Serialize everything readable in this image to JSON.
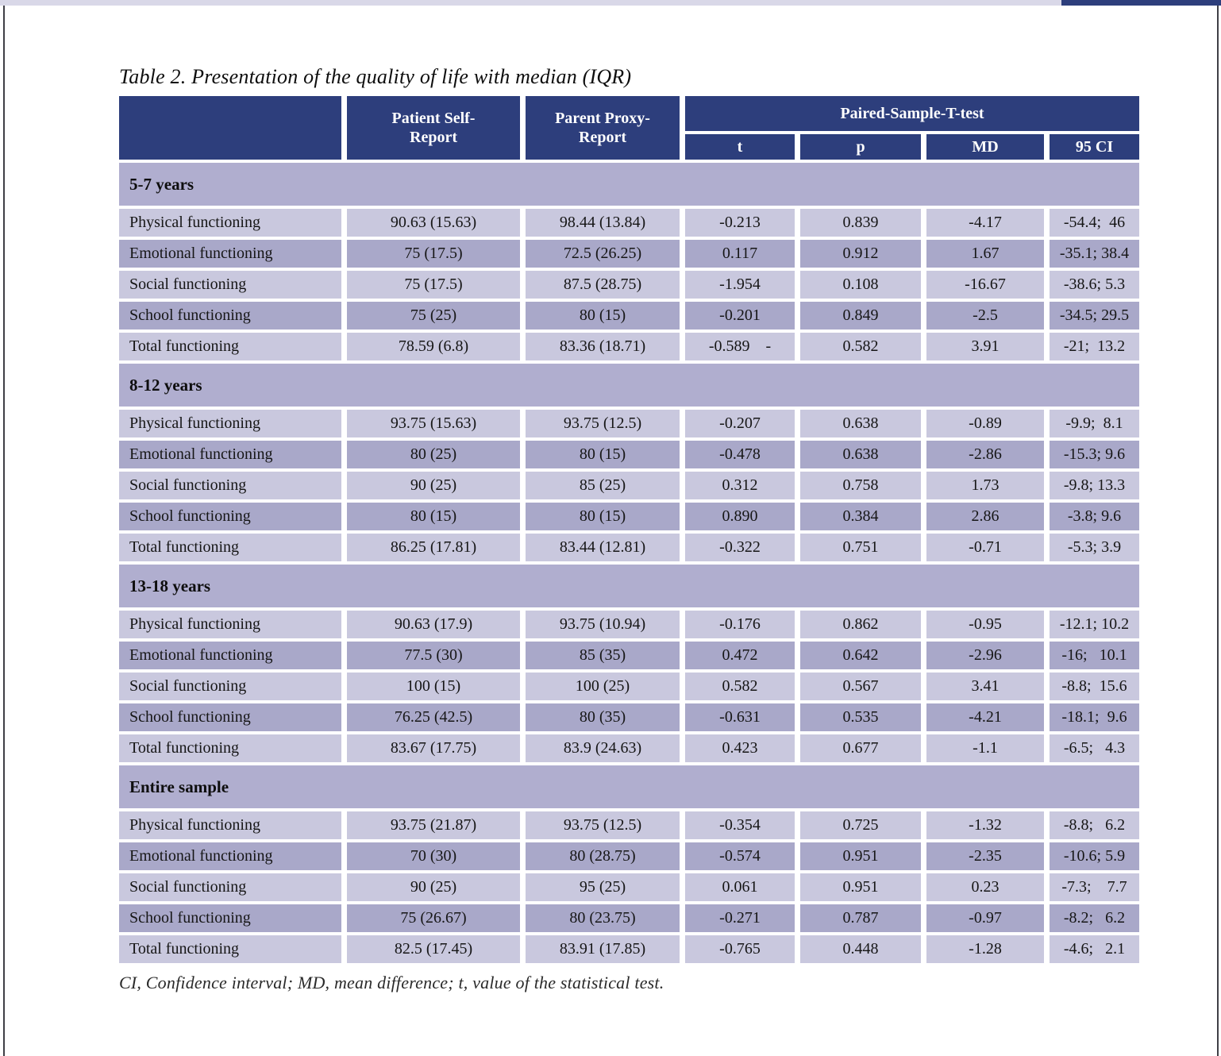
{
  "page": {
    "title": "Table 2. Presentation of the quality of life with median (IQR)",
    "footnote": "CI, Confidence interval; MD, mean difference; t, value of the statistical test."
  },
  "colors": {
    "header_navy": "#2d3e7c",
    "row_light": "#c9c8de",
    "row_dark": "#a9a8c9",
    "section_row": "#b0aecf"
  },
  "table": {
    "header": {
      "patient_self_report": "Patient Self-Report",
      "parent_proxy_report": "Parent Proxy-Report",
      "group": "Paired-Sample-T-test",
      "sub_t": "t",
      "sub_p": "p",
      "sub_md": "MD",
      "sub_ci": "95 CI"
    },
    "sections": [
      {
        "label": "5-7 years",
        "rows": [
          {
            "label": "Physical functioning",
            "self": "90.63 (15.63)",
            "proxy": "98.44 (13.84)",
            "t": "-0.213",
            "p": "0.839",
            "md": "-4.17",
            "ci": "-54.4;  46"
          },
          {
            "label": "Emotional functioning",
            "self": "75 (17.5)",
            "proxy": "72.5 (26.25)",
            "t": "0.117",
            "p": "0.912",
            "md": "1.67",
            "ci": "-35.1; 38.4"
          },
          {
            "label": "Social functioning",
            "self": "75 (17.5)",
            "proxy": "87.5 (28.75)",
            "t": "-1.954",
            "p": "0.108",
            "md": "-16.67",
            "ci": "-38.6; 5.3"
          },
          {
            "label": "School functioning",
            "self": "75 (25)",
            "proxy": "80 (15)",
            "t": "-0.201",
            "p": "0.849",
            "md": "-2.5",
            "ci": "-34.5; 29.5"
          },
          {
            "label": "Total functioning",
            "self": "78.59 (6.8)",
            "proxy": "83.36 (18.71)",
            "t": "-0.589    -",
            "p": "0.582",
            "md": "3.91",
            "ci": "-21;  13.2"
          }
        ]
      },
      {
        "label": "8-12 years",
        "rows": [
          {
            "label": "Physical functioning",
            "self": "93.75 (15.63)",
            "proxy": "93.75 (12.5)",
            "t": "-0.207",
            "p": "0.638",
            "md": "-0.89",
            "ci": "-9.9;  8.1"
          },
          {
            "label": "Emotional functioning",
            "self": "80 (25)",
            "proxy": "80 (15)",
            "t": "-0.478",
            "p": "0.638",
            "md": "-2.86",
            "ci": "-15.3; 9.6"
          },
          {
            "label": "Social functioning",
            "self": "90 (25)",
            "proxy": "85 (25)",
            "t": "0.312",
            "p": "0.758",
            "md": "1.73",
            "ci": "-9.8; 13.3"
          },
          {
            "label": "School functioning",
            "self": "80 (15)",
            "proxy": "80 (15)",
            "t": "0.890",
            "p": "0.384",
            "md": "2.86",
            "ci": "-3.8; 9.6"
          },
          {
            "label": "Total functioning",
            "self": "86.25 (17.81)",
            "proxy": "83.44 (12.81)",
            "t": "-0.322",
            "p": "0.751",
            "md": "-0.71",
            "ci": "-5.3; 3.9"
          }
        ]
      },
      {
        "label": "13-18 years",
        "rows": [
          {
            "label": "Physical functioning",
            "self": "90.63 (17.9)",
            "proxy": "93.75 (10.94)",
            "t": "-0.176",
            "p": "0.862",
            "md": "-0.95",
            "ci": "-12.1; 10.2"
          },
          {
            "label": "Emotional functioning",
            "self": "77.5 (30)",
            "proxy": "85 (35)",
            "t": "0.472",
            "p": "0.642",
            "md": "-2.96",
            "ci": "-16;   10.1"
          },
          {
            "label": "Social functioning",
            "self": "100 (15)",
            "proxy": "100 (25)",
            "t": "0.582",
            "p": "0.567",
            "md": "3.41",
            "ci": "-8.8;  15.6"
          },
          {
            "label": "School functioning",
            "self": "76.25 (42.5)",
            "proxy": "80 (35)",
            "t": "-0.631",
            "p": "0.535",
            "md": "-4.21",
            "ci": "-18.1;  9.6"
          },
          {
            "label": "Total functioning",
            "self": "83.67 (17.75)",
            "proxy": "83.9 (24.63)",
            "t": "0.423",
            "p": "0.677",
            "md": "-1.1",
            "ci": "-6.5;   4.3"
          }
        ]
      },
      {
        "label": "Entire sample",
        "rows": [
          {
            "label": "Physical functioning",
            "self": "93.75 (21.87)",
            "proxy": "93.75 (12.5)",
            "t": "-0.354",
            "p": "0.725",
            "md": "-1.32",
            "ci": "-8.8;   6.2"
          },
          {
            "label": "Emotional functioning",
            "self": "70 (30)",
            "proxy": "80 (28.75)",
            "t": "-0.574",
            "p": "0.951",
            "md": "-2.35",
            "ci": "-10.6; 5.9"
          },
          {
            "label": "Social functioning",
            "self": "90 (25)",
            "proxy": "95 (25)",
            "t": "0.061",
            "p": "0.951",
            "md": "0.23",
            "ci": "-7.3;    7.7"
          },
          {
            "label": "School functioning",
            "self": "75 (26.67)",
            "proxy": "80 (23.75)",
            "t": "-0.271",
            "p": "0.787",
            "md": "-0.97",
            "ci": "-8.2;   6.2"
          },
          {
            "label": "Total functioning",
            "self": "82.5 (17.45)",
            "proxy": "83.91 (17.85)",
            "t": "-0.765",
            "p": "0.448",
            "md": "-1.28",
            "ci": "-4.6;   2.1"
          }
        ]
      }
    ]
  }
}
